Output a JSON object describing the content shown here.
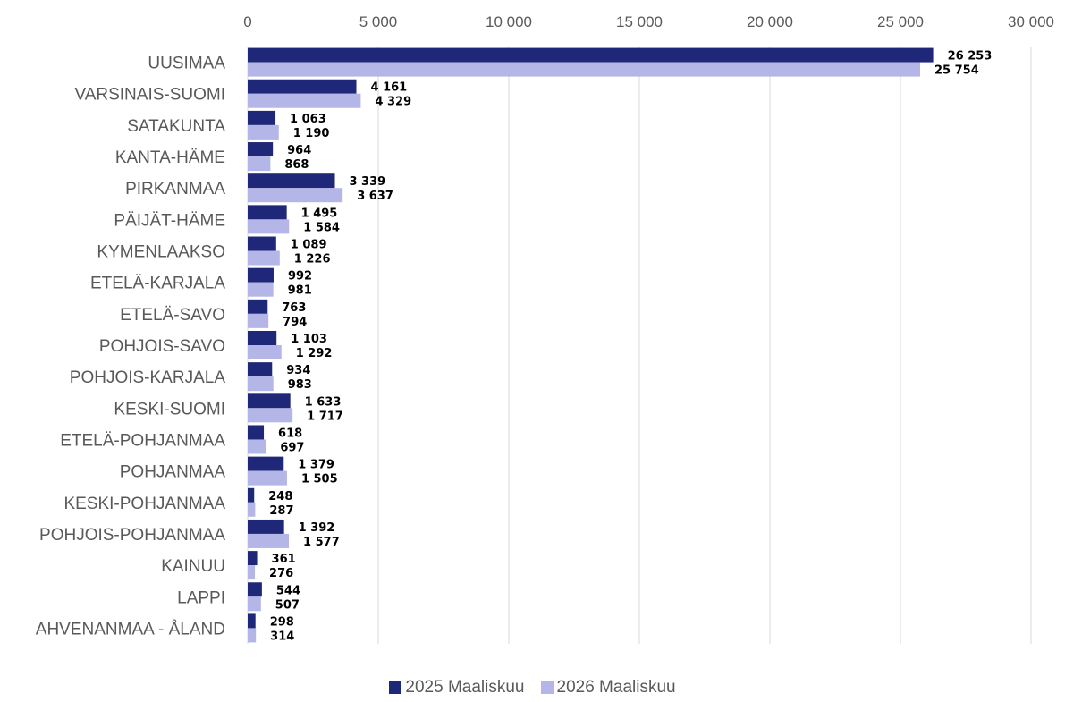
{
  "chart_data": {
    "type": "bar",
    "orientation": "horizontal",
    "categories": [
      "UUSIMAA",
      "VARSINAIS-SUOMI",
      "SATAKUNTA",
      "KANTA-HÄME",
      "PIRKANMAA",
      "PÄIJÄT-HÄME",
      "KYMENLAAKSO",
      "ETELÄ-KARJALA",
      "ETELÄ-SAVO",
      "POHJOIS-SAVO",
      "POHJOIS-KARJALA",
      "KESKI-SUOMI",
      "ETELÄ-POHJANMAA",
      "POHJANMAA",
      "KESKI-POHJANMAA",
      "POHJOIS-POHJANMAA",
      "KAINUU",
      "LAPPI",
      "AHVENANMAA - ÅLAND"
    ],
    "series": [
      {
        "name": "2025 Maaliskuu",
        "color": "#1f2778",
        "values": [
          26253,
          4161,
          1063,
          964,
          3339,
          1495,
          1089,
          992,
          763,
          1103,
          934,
          1633,
          618,
          1379,
          248,
          1392,
          361,
          544,
          298
        ],
        "labels": [
          "26 253",
          "4 161",
          "1 063",
          "964",
          "3 339",
          "1 495",
          "1 089",
          "992",
          "763",
          "1 103",
          "934",
          "1 633",
          "618",
          "1 379",
          "248",
          "1 392",
          "361",
          "544",
          "298"
        ]
      },
      {
        "name": "2026 Maaliskuu",
        "color": "#b3b6e6",
        "values": [
          25754,
          4329,
          1190,
          868,
          3637,
          1584,
          1226,
          981,
          794,
          1292,
          983,
          1717,
          697,
          1505,
          287,
          1577,
          276,
          507,
          314
        ],
        "labels": [
          "25 754",
          "4 329",
          "1 190",
          "868",
          "3 637",
          "1 584",
          "1 226",
          "981",
          "794",
          "1 292",
          "983",
          "1 717",
          "697",
          "1 505",
          "287",
          "1 577",
          "276",
          "507",
          "314"
        ]
      }
    ],
    "xlim": [
      0,
      30000
    ],
    "x_ticks": [
      0,
      5000,
      10000,
      15000,
      20000,
      25000,
      30000
    ],
    "x_tick_labels": [
      "0",
      "5 000",
      "10 000",
      "15 000",
      "20 000",
      "25 000",
      "30 000"
    ],
    "x_axis_position": "top",
    "grid": true,
    "legend_position": "bottom"
  }
}
